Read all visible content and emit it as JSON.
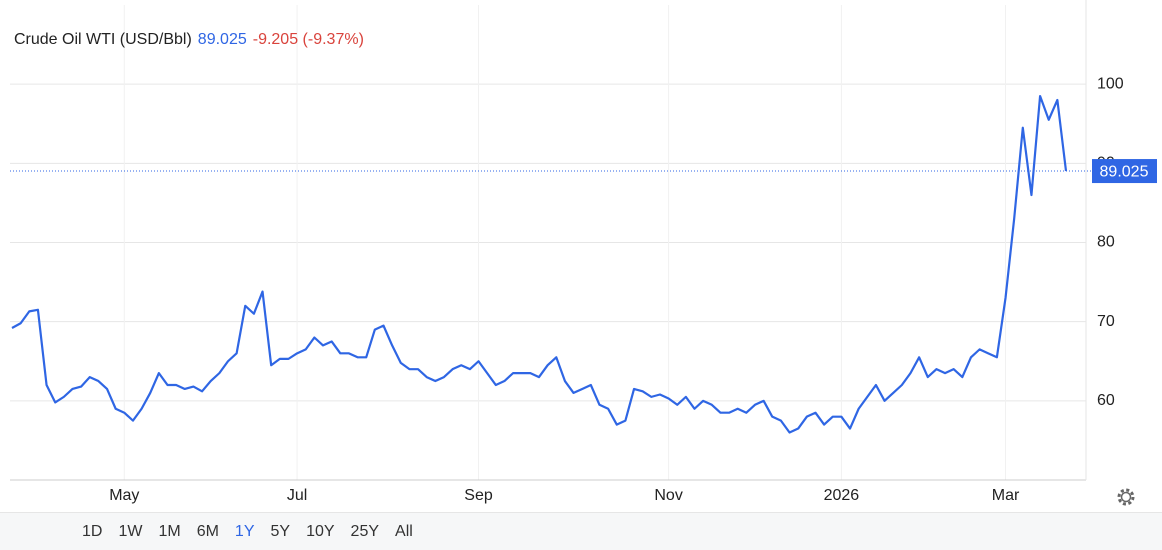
{
  "chart_data": {
    "type": "line",
    "title": "Crude Oil WTI (USD/Bbl)",
    "last_price": 89.025,
    "change": "-9.205 (-9.37%)",
    "categories": [
      null,
      null,
      null,
      null,
      null,
      null,
      null,
      null,
      null,
      null,
      null,
      null,
      null,
      "May",
      null,
      null,
      null,
      null,
      null,
      null,
      null,
      null,
      null,
      null,
      null,
      null,
      null,
      null,
      null,
      null,
      null,
      null,
      null,
      "Jul",
      null,
      null,
      null,
      null,
      null,
      null,
      null,
      null,
      null,
      null,
      null,
      null,
      null,
      null,
      null,
      null,
      null,
      null,
      null,
      null,
      "Sep",
      null,
      null,
      null,
      null,
      null,
      null,
      null,
      null,
      null,
      null,
      null,
      null,
      null,
      null,
      null,
      null,
      null,
      null,
      null,
      null,
      null,
      "Nov",
      null,
      null,
      null,
      null,
      null,
      null,
      null,
      null,
      null,
      null,
      null,
      null,
      null,
      null,
      null,
      null,
      null,
      null,
      null,
      "2026",
      null,
      null,
      null,
      null,
      null,
      null,
      null,
      null,
      null,
      null,
      null,
      null,
      null,
      null,
      null,
      null,
      null,
      null,
      "Mar",
      null,
      null,
      null,
      null,
      null,
      null,
      null
    ],
    "series": [
      {
        "name": "Crude Oil WTI",
        "color": "#2f66e4",
        "values": [
          69.2,
          69.8,
          71.3,
          71.5,
          62,
          59.8,
          60.5,
          61.5,
          61.8,
          63,
          62.5,
          61.5,
          59,
          58.5,
          57.5,
          59,
          61,
          63.5,
          62,
          62,
          61.5,
          61.8,
          61.2,
          62.5,
          63.5,
          65,
          66,
          72,
          71,
          73.8,
          64.5,
          65.3,
          65.3,
          66,
          66.5,
          68,
          67,
          67.5,
          66,
          66,
          65.5,
          65.5,
          69,
          69.5,
          67,
          64.8,
          64,
          64,
          63,
          62.5,
          63,
          64,
          64.5,
          64,
          65,
          63.5,
          62,
          62.5,
          63.5,
          63.5,
          63.5,
          63,
          64.5,
          65.5,
          62.5,
          61,
          61.5,
          62,
          59.5,
          59,
          57,
          57.5,
          61.5,
          61.2,
          60.5,
          60.8,
          60.3,
          59.5,
          60.5,
          59,
          60,
          59.5,
          58.5,
          58.5,
          59,
          58.5,
          59.5,
          60,
          58,
          57.5,
          56,
          56.5,
          58,
          58.5,
          57,
          58,
          58,
          56.5,
          59,
          60.5,
          62,
          60,
          61,
          62,
          63.5,
          65.5,
          63,
          64,
          63.5,
          64,
          63,
          65.5,
          66.5,
          66,
          65.5,
          73,
          83,
          94.5,
          86,
          98.5,
          95.5,
          98,
          89.025
        ]
      }
    ],
    "ylim": [
      50,
      110
    ],
    "yticks": [
      60,
      70,
      80,
      90,
      100
    ],
    "grid": true,
    "ranges": [
      "1D",
      "1W",
      "1M",
      "6M",
      "1Y",
      "5Y",
      "10Y",
      "25Y",
      "All"
    ],
    "active_range": "1Y"
  }
}
